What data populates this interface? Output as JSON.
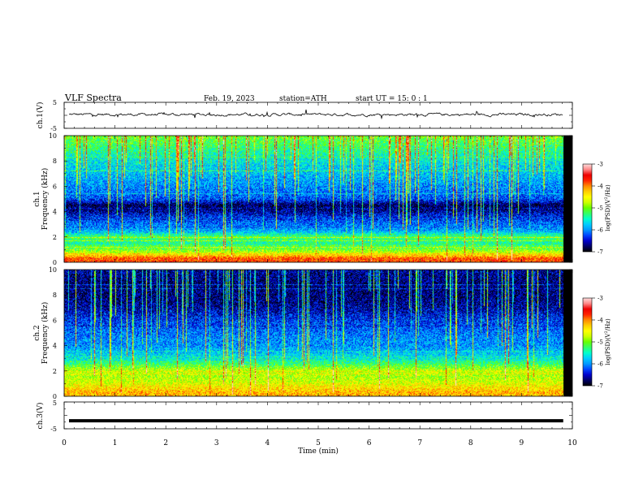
{
  "header": {
    "title": "VLF  Spectra",
    "date": "Feb. 19, 2023",
    "station": "station=ATH",
    "start": "start  UT  =   15: 0   : 1"
  },
  "colors": {
    "colormap": [
      "#000000",
      "#000066",
      "#0000cc",
      "#0044ff",
      "#0099ff",
      "#00ccff",
      "#00ffcc",
      "#33ff66",
      "#66ff00",
      "#ccff00",
      "#ffff00",
      "#ffcc00",
      "#ff8800",
      "#ff2200",
      "#ee0000",
      "#ff8888",
      "#ffdddd"
    ],
    "trace": "#000000"
  },
  "chart_data": [
    {
      "type": "line",
      "ylabel": "ch.1(V)",
      "xlim": [
        0,
        10
      ],
      "ylim": [
        -5,
        5
      ],
      "yticks": [
        "5",
        "-5"
      ],
      "series": [
        {
          "description": "noisy waveform fluctuating around about 0 to 1 V",
          "approx_level": 0.3
        }
      ]
    },
    {
      "type": "heatmap",
      "ylabel": "ch.1\nFrequency (kHz)",
      "xlim": [
        0,
        10
      ],
      "ylim": [
        0,
        10
      ],
      "yticks": [
        "0",
        "2",
        "4",
        "6",
        "8",
        "10"
      ],
      "colorbar": {
        "label": "log(PSD)(V²/Hz)",
        "range": [
          -7,
          -3
        ],
        "ticks": [
          "-3",
          "-4",
          "-5",
          "-6",
          "-7"
        ]
      },
      "frequency_profile": [
        {
          "f": 0.3,
          "v": -3.8
        },
        {
          "f": 0.7,
          "v": -4.6
        },
        {
          "f": 1.0,
          "v": -5.0
        },
        {
          "f": 1.5,
          "v": -5.4
        },
        {
          "f": 2.0,
          "v": -5.2
        },
        {
          "f": 2.5,
          "v": -5.9
        },
        {
          "f": 3.0,
          "v": -6.1
        },
        {
          "f": 3.5,
          "v": -6.3
        },
        {
          "f": 4.0,
          "v": -6.6
        },
        {
          "f": 4.5,
          "v": -6.8
        },
        {
          "f": 5.0,
          "v": -6.2
        },
        {
          "f": 6.0,
          "v": -6.0
        },
        {
          "f": 7.0,
          "v": -5.8
        },
        {
          "f": 8.0,
          "v": -5.6
        },
        {
          "f": 9.0,
          "v": -5.3
        },
        {
          "f": 10.0,
          "v": -5.0
        }
      ]
    },
    {
      "type": "heatmap",
      "ylabel": "ch.2\nFrequency (kHz)",
      "xlim": [
        0,
        10
      ],
      "ylim": [
        0,
        10
      ],
      "yticks": [
        "0",
        "2",
        "4",
        "6",
        "8",
        "10"
      ],
      "colorbar": {
        "label": "log(PSD)(V²/Hz)",
        "range": [
          -7,
          -3
        ],
        "ticks": [
          "-3",
          "-4",
          "-5",
          "-6",
          "-7"
        ]
      },
      "frequency_profile": [
        {
          "f": 0.3,
          "v": -4.2
        },
        {
          "f": 0.7,
          "v": -4.4
        },
        {
          "f": 1.0,
          "v": -4.6
        },
        {
          "f": 1.5,
          "v": -4.8
        },
        {
          "f": 2.0,
          "v": -4.7
        },
        {
          "f": 2.5,
          "v": -5.2
        },
        {
          "f": 3.0,
          "v": -5.6
        },
        {
          "f": 3.5,
          "v": -5.8
        },
        {
          "f": 4.0,
          "v": -6.0
        },
        {
          "f": 4.5,
          "v": -6.0
        },
        {
          "f": 5.0,
          "v": -6.1
        },
        {
          "f": 6.0,
          "v": -6.3
        },
        {
          "f": 7.0,
          "v": -6.6
        },
        {
          "f": 8.0,
          "v": -6.7
        },
        {
          "f": 9.0,
          "v": -6.7
        },
        {
          "f": 10.0,
          "v": -6.6
        }
      ]
    },
    {
      "type": "line",
      "ylabel": "ch.3(V)",
      "xlim": [
        0,
        10
      ],
      "ylim": [
        -5,
        5
      ],
      "yticks": [
        "5",
        "-5"
      ],
      "series": [
        {
          "description": "flat thick trace",
          "approx_level": -2.0
        }
      ]
    }
  ],
  "xaxis": {
    "label": "Time  (min)",
    "ticks": [
      "0",
      "1",
      "2",
      "3",
      "4",
      "5",
      "6",
      "7",
      "8",
      "9",
      "10"
    ]
  }
}
